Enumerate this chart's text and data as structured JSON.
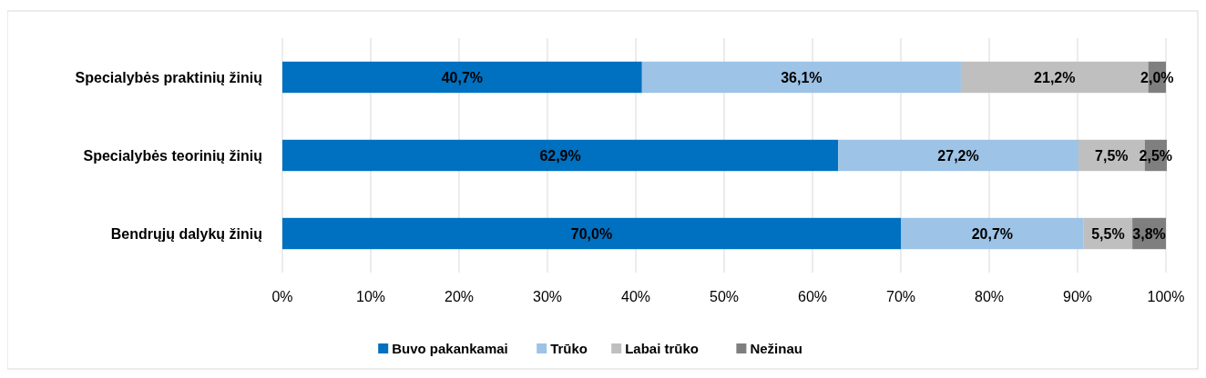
{
  "chart_data": {
    "type": "bar",
    "orientation": "horizontal",
    "stacked": true,
    "categories": [
      "Specialybės praktinių žinių",
      "Specialybės teorinių žinių",
      "Bendrųjų dalykų žinių"
    ],
    "series": [
      {
        "name": "Buvo pakankamai",
        "color": "#0070c0",
        "values": [
          40.7,
          62.9,
          70.0
        ],
        "value_labels": [
          "40,7%",
          "62,9%",
          "70,0%"
        ]
      },
      {
        "name": "Trūko",
        "color": "#9dc3e6",
        "values": [
          36.1,
          27.2,
          20.7
        ],
        "value_labels": [
          "36,1%",
          "27,2%",
          "20,7%"
        ]
      },
      {
        "name": "Labai trūko",
        "color": "#bfbfbf",
        "values": [
          21.2,
          7.5,
          5.5
        ],
        "value_labels": [
          "21,2%",
          "7,5%",
          "5,5%"
        ]
      },
      {
        "name": "Nežinau",
        "color": "#7f7f7f",
        "values": [
          2.0,
          2.5,
          3.8
        ],
        "value_labels": [
          "2,0%",
          "2,5%",
          "3,8%"
        ]
      }
    ],
    "xlim": [
      0,
      100
    ],
    "xticks": [
      {
        "value": 0,
        "label": "0%"
      },
      {
        "value": 10,
        "label": "10%"
      },
      {
        "value": 20,
        "label": "20%"
      },
      {
        "value": 30,
        "label": "30%"
      },
      {
        "value": 40,
        "label": "40%"
      },
      {
        "value": 50,
        "label": "50%"
      },
      {
        "value": 60,
        "label": "60%"
      },
      {
        "value": 70,
        "label": "70%"
      },
      {
        "value": 80,
        "label": "80%"
      },
      {
        "value": 90,
        "label": "90%"
      },
      {
        "value": 100,
        "label": "100%"
      }
    ],
    "grid": "x",
    "legend": "bottom"
  }
}
